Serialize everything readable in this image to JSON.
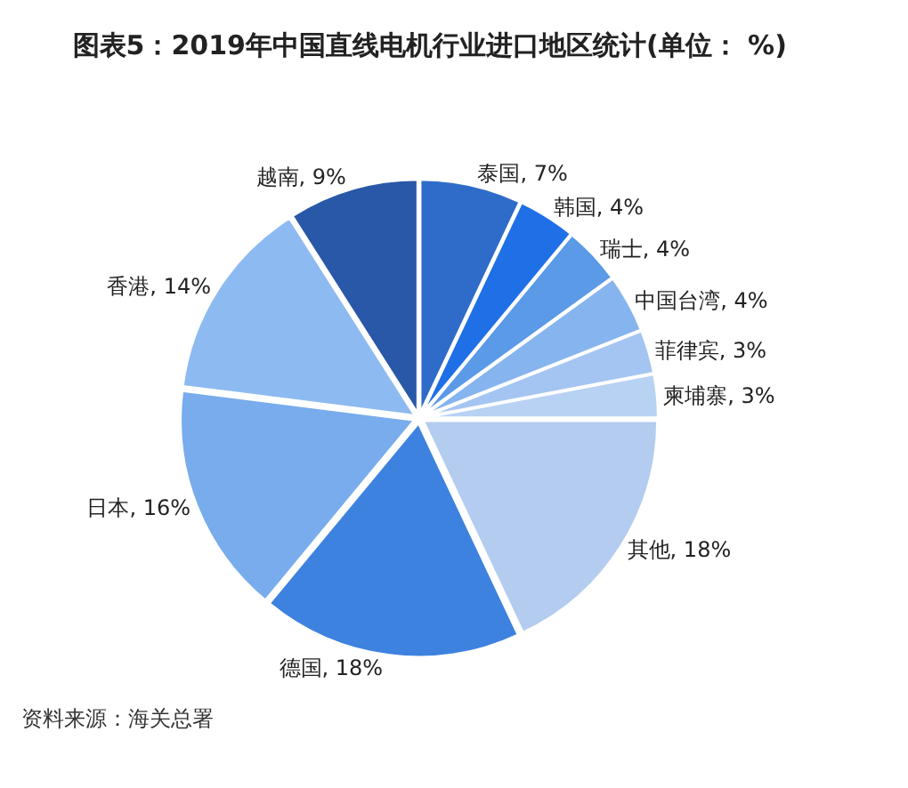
{
  "chart_data": {
    "type": "pie",
    "title": "图表5：2019年中国直线电机行业进口地区统计(单位： %)",
    "categories": [
      "泰国",
      "韩国",
      "瑞士",
      "中国台湾",
      "菲律宾",
      "柬埔寨",
      "其他",
      "德国",
      "日本",
      "香港",
      "越南"
    ],
    "values": [
      7,
      4,
      4,
      4,
      3,
      3,
      18,
      18,
      16,
      14,
      9
    ],
    "value_labels": [
      "7%",
      "4%",
      "4%",
      "4%",
      "3%",
      "3%",
      "18%",
      "18%",
      "16%",
      "14%",
      "9%"
    ],
    "colors": [
      "#2f6cc9",
      "#1f6fe6",
      "#5a9ae6",
      "#86b4ee",
      "#a4c5f2",
      "#b8d2f4",
      "#b3ccef",
      "#3d82df",
      "#78acec",
      "#8dbaf0",
      "#2a58a8"
    ],
    "annotations": [
      "资料来源：海关总署"
    ],
    "legend": false
  }
}
